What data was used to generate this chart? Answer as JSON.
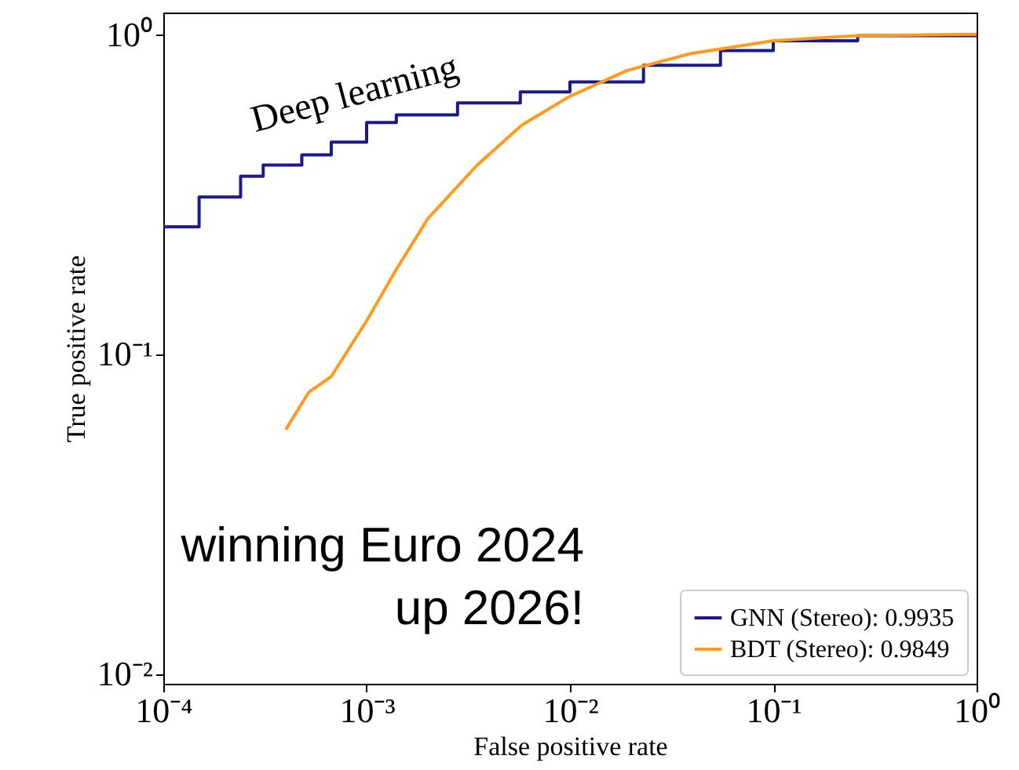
{
  "chart_data": {
    "type": "line",
    "xlabel": "False positive rate",
    "ylabel": "True positive rate",
    "log": "xy",
    "grid": false,
    "legend": "bottom right",
    "xlim": [
      0.0001,
      1
    ],
    "ylim": [
      0.0093,
      1.17
    ],
    "xticks": [
      {
        "value": 0.0001,
        "label": "10⁻⁴"
      },
      {
        "value": 0.001,
        "label": "10⁻³"
      },
      {
        "value": 0.01,
        "label": "10⁻²"
      },
      {
        "value": 0.1,
        "label": "10⁻¹"
      },
      {
        "value": 1,
        "label": "10⁰"
      }
    ],
    "yticks": [
      {
        "value": 0.01,
        "label": "10⁻²"
      },
      {
        "value": 0.1,
        "label": "10⁻¹"
      },
      {
        "value": 1,
        "label": "10⁰"
      }
    ],
    "series": [
      {
        "name": "GNN (Stereo): 0.9935",
        "color": "#1a1a8c",
        "type": "step",
        "x": [
          0.0001,
          0.00015,
          0.00024,
          0.00031,
          0.00048,
          0.00067,
          0.001,
          0.0014,
          0.0028,
          0.0057,
          0.01,
          0.023,
          0.055,
          0.1,
          0.26,
          1
        ],
        "values": [
          0.25,
          0.31,
          0.36,
          0.39,
          0.42,
          0.46,
          0.53,
          0.56,
          0.61,
          0.66,
          0.71,
          0.8,
          0.89,
          0.955,
          0.99,
          1.0
        ]
      },
      {
        "name": "BDT (Stereo): 0.9849",
        "color": "#ff9a1f",
        "x": [
          0.0004,
          0.00052,
          0.00067,
          0.001,
          0.0014,
          0.002,
          0.0035,
          0.0058,
          0.01,
          0.019,
          0.039,
          0.1,
          0.26,
          1
        ],
        "values": [
          0.058,
          0.076,
          0.085,
          0.127,
          0.184,
          0.265,
          0.39,
          0.52,
          0.64,
          0.77,
          0.87,
          0.955,
          0.99,
          1.0
        ]
      }
    ],
    "annotations": [
      "Deep learning",
      "winning Euro 2024\nup 2026!"
    ]
  }
}
